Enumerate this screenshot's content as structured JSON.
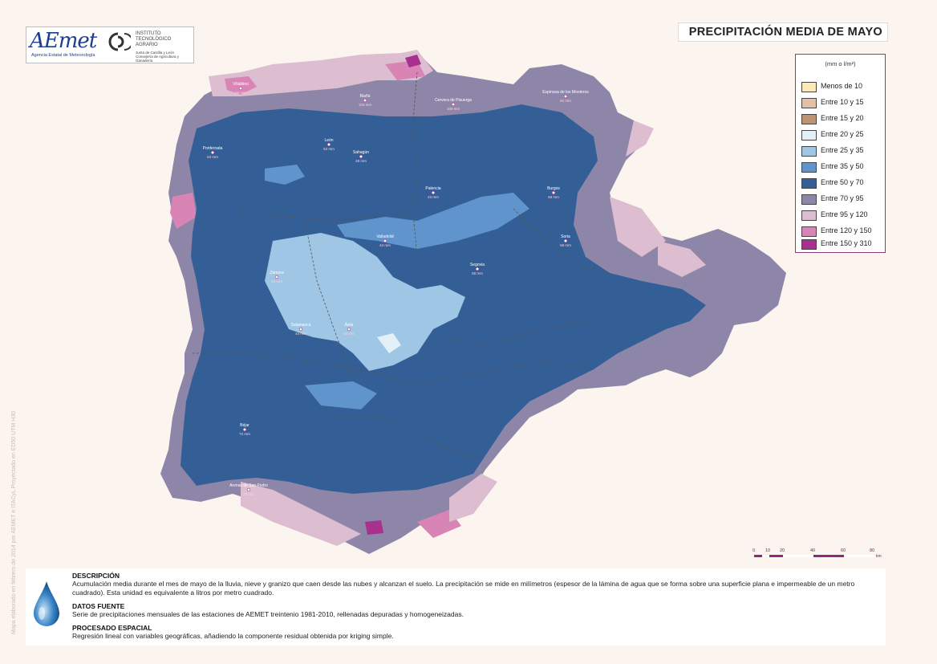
{
  "side_credit": "Mapa elaborado en febrero de 2014 por AEMET e ITACyL   Proyectado en ED50 UTM H30",
  "logos": {
    "aemet_word": "AEmet",
    "aemet_sub": "Agencia Estatal de Meteorología",
    "ita_name": "INSTITUTO\nTECNOLÓGICO\nAGRARIO",
    "ita_sub": "Junta de Castilla y León\nConsejería de Agricultura y Ganadería"
  },
  "title": "PRECIPITACIÓN MEDIA DE MAYO",
  "legend": {
    "unit": "(mm o l/m²)",
    "items": [
      {
        "label": "Menos de 10",
        "color": "#fde8b8"
      },
      {
        "label": "Entre 10 y 15",
        "color": "#e2c2a6"
      },
      {
        "label": "Entre 15 y 20",
        "color": "#b99374"
      },
      {
        "label": "Entre 20 y 25",
        "color": "#e4f0f8"
      },
      {
        "label": "Entre 25 y 35",
        "color": "#9fc6e4"
      },
      {
        "label": "Entre 35 y 50",
        "color": "#5f95cc"
      },
      {
        "label": "Entre 50 y 70",
        "color": "#335f96"
      },
      {
        "label": "Entre 70 y 95",
        "color": "#8e86a8"
      },
      {
        "label": "Entre 95 y 120",
        "color": "#dcbed0"
      },
      {
        "label": "Entre 120 y 150",
        "color": "#d884b4"
      },
      {
        "label": "Entre 150 y 310",
        "color": "#a8308e"
      }
    ]
  },
  "scale": {
    "ticks": [
      "0",
      "10",
      "20",
      "40",
      "60",
      "80"
    ],
    "unit": "km"
  },
  "stations": [
    {
      "name": "Villablino",
      "value": "95 mm"
    },
    {
      "name": "Riaño",
      "value": "100 mm"
    },
    {
      "name": "Cervera de Pisuerga",
      "value": "100 mm"
    },
    {
      "name": "Espinosa de los Monteros",
      "value": "92 mm"
    },
    {
      "name": "Ponferrada",
      "value": "63 mm"
    },
    {
      "name": "León",
      "value": "52 mm"
    },
    {
      "name": "Sahagún",
      "value": "48 mm"
    },
    {
      "name": "Palencia",
      "value": "43 mm"
    },
    {
      "name": "Burgos",
      "value": "58 mm"
    },
    {
      "name": "Soria",
      "value": "59 mm"
    },
    {
      "name": "Zamora",
      "value": "40 mm"
    },
    {
      "name": "Valladolid",
      "value": "44 mm"
    },
    {
      "name": "Salamanca",
      "value": "44 mm"
    },
    {
      "name": "Segovia",
      "value": "58 mm"
    },
    {
      "name": "Ávila",
      "value": "48 mm"
    },
    {
      "name": "Béjar",
      "value": "72 mm"
    },
    {
      "name": "Arenas de San Pedro",
      "value": "88 mm"
    }
  ],
  "info": {
    "descripcion_h": "DESCRIPCIÓN",
    "descripcion_p": "Acumulación media durante el mes de mayo de la lluvia, nieve y granizo que caen desde las nubes y alcanzan el suelo. La precipitación se mide en milímetros (espesor de la lámina de agua que se forma sobre una superficie plana e impermeable de un metro cuadrado). Esta unidad es equivalente a litros por metro cuadrado.",
    "datos_h": "DATOS FUENTE",
    "datos_p": "Serie de precipitaciones mensuales de las estaciones de AEMET treintenio 1981-2010, rellenadas depuradas y homogeneizadas.",
    "procesado_h": "PROCESADO ESPACIAL",
    "procesado_p": "Regresión lineal con variables geográficas, añadiendo la componente residual obtenida por kriging simple."
  }
}
